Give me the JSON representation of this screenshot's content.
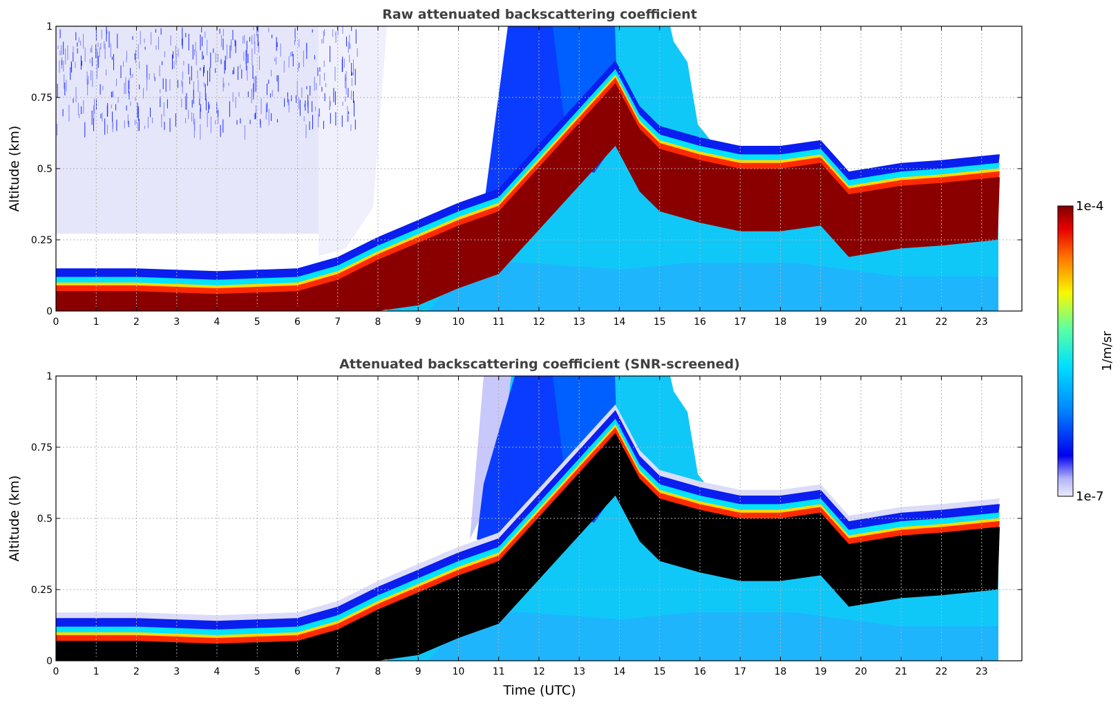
{
  "chart_data": [
    {
      "type": "heatmap",
      "title": "Raw attenuated backscattering coefficient",
      "xlabel": "",
      "ylabel": "Altitude (km)",
      "xlim": [
        0,
        24
      ],
      "ylim": [
        0,
        1
      ],
      "xticks": [
        "0",
        "1",
        "2",
        "3",
        "4",
        "5",
        "6",
        "7",
        "8",
        "9",
        "10",
        "11",
        "12",
        "13",
        "14",
        "15",
        "16",
        "17",
        "18",
        "19",
        "20",
        "21",
        "22",
        "23"
      ],
      "yticks": [
        "0",
        "0.25",
        "0.5",
        "0.75",
        "1"
      ],
      "grid": true,
      "data_end_hour": 23.45,
      "layer_top_km": [
        {
          "x": 0,
          "y": 0.15
        },
        {
          "x": 2,
          "y": 0.15
        },
        {
          "x": 4,
          "y": 0.14
        },
        {
          "x": 6,
          "y": 0.15
        },
        {
          "x": 7,
          "y": 0.19
        },
        {
          "x": 8,
          "y": 0.26
        },
        {
          "x": 9,
          "y": 0.32
        },
        {
          "x": 10,
          "y": 0.38
        },
        {
          "x": 11,
          "y": 0.43
        },
        {
          "x": 13.9,
          "y": 0.88
        },
        {
          "x": 14.5,
          "y": 0.72
        },
        {
          "x": 15,
          "y": 0.65
        },
        {
          "x": 16,
          "y": 0.61
        },
        {
          "x": 17,
          "y": 0.58
        },
        {
          "x": 18,
          "y": 0.58
        },
        {
          "x": 19,
          "y": 0.6
        },
        {
          "x": 19.7,
          "y": 0.49
        },
        {
          "x": 21,
          "y": 0.52
        },
        {
          "x": 22,
          "y": 0.53
        },
        {
          "x": 23.4,
          "y": 0.55
        }
      ],
      "noise_region": {
        "x_range": [
          0,
          7.5
        ],
        "y_range": [
          0.2,
          1.0
        ]
      }
    },
    {
      "type": "heatmap",
      "title": "Attenuated backscattering coefficient (SNR-screened)",
      "xlabel": "Time (UTC)",
      "ylabel": "Altitude (km)",
      "xlim": [
        0,
        24
      ],
      "ylim": [
        0,
        1
      ],
      "xticks": [
        "0",
        "1",
        "2",
        "3",
        "4",
        "5",
        "6",
        "7",
        "8",
        "9",
        "10",
        "11",
        "12",
        "13",
        "14",
        "15",
        "16",
        "17",
        "18",
        "19",
        "20",
        "21",
        "22",
        "23"
      ],
      "yticks": [
        "0",
        "0.25",
        "0.5",
        "0.75",
        "1"
      ],
      "grid": true,
      "data_end_hour": 23.45,
      "saturated_color": "#000000"
    }
  ],
  "colorbar": {
    "label": "1/m/sr",
    "max_label": "1e-4",
    "min_label": "1e-7",
    "scale": "log",
    "colormap": "jet",
    "range": [
      1e-07,
      0.0001
    ]
  }
}
